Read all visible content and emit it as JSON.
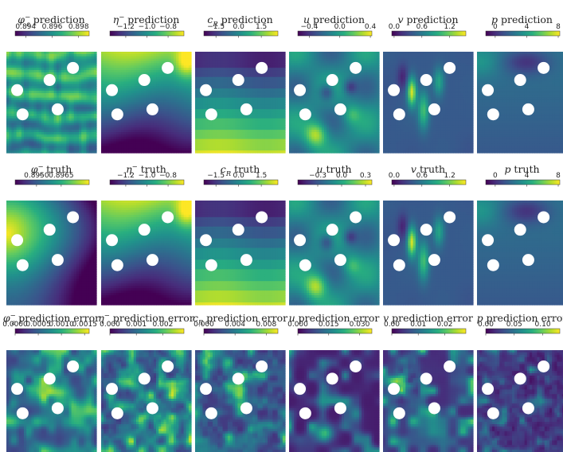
{
  "colors": {
    "colormap": "viridis",
    "viridis_stops": [
      "#440154",
      "#472d7b",
      "#3b528b",
      "#2c728e",
      "#21918c",
      "#28ae80",
      "#5ec962",
      "#addc30",
      "#fde725"
    ],
    "obstacle": "#ffffff"
  },
  "chart_data": [
    {
      "type": "heatmap",
      "row": "prediction",
      "variable": "phi_eps_minus",
      "title_sym": "φ",
      "title_sup": "−",
      "title_sub": "ε",
      "title_text": " prediction",
      "cbar_ticks": [
        "0.894",
        "0.896",
        "0.898"
      ],
      "cbar_range": [
        0.8932,
        0.8988
      ],
      "cbar_tick_values": [
        0.894,
        0.896,
        0.898
      ],
      "field": "phi_pred"
    },
    {
      "type": "heatmap",
      "row": "prediction",
      "variable": "eta_minus",
      "title_sym": "η",
      "title_sup": "−",
      "title_sub": "",
      "title_text": " prediction",
      "cbar_ticks": [
        "−1.2",
        "−1.0",
        "−0.8"
      ],
      "cbar_range": [
        -1.35,
        -0.65
      ],
      "cbar_tick_values": [
        -1.2,
        -1.0,
        -0.8
      ],
      "field": "eta"
    },
    {
      "type": "heatmap",
      "row": "prediction",
      "variable": "c_R",
      "title_sym": "c",
      "title_sup": "",
      "title_sub": "R",
      "title_text": " prediction",
      "cbar_ticks": [
        "−1.5",
        "0.0",
        "1.5"
      ],
      "cbar_range": [
        -2.3,
        2.6
      ],
      "cbar_tick_values": [
        -1.5,
        0.0,
        1.5
      ],
      "field": "cr"
    },
    {
      "type": "heatmap",
      "row": "prediction",
      "variable": "u",
      "title_sym": "u",
      "title_sup": "",
      "title_sub": "",
      "title_text": " prediction",
      "cbar_ticks": [
        "−0.4",
        "0.0",
        "0.4"
      ],
      "cbar_range": [
        -0.55,
        0.42
      ],
      "cbar_tick_values": [
        -0.4,
        0.0,
        0.4
      ],
      "field": "u"
    },
    {
      "type": "heatmap",
      "row": "prediction",
      "variable": "v",
      "title_sym": "v",
      "title_sup": "",
      "title_sub": "",
      "title_text": " prediction",
      "cbar_ticks": [
        "0.0",
        "0.6",
        "1.2"
      ],
      "cbar_range": [
        -0.05,
        1.55
      ],
      "cbar_tick_values": [
        0.0,
        0.6,
        1.2
      ],
      "field": "v"
    },
    {
      "type": "heatmap",
      "row": "prediction",
      "variable": "p",
      "title_sym": "p",
      "title_sup": "",
      "title_sub": "",
      "title_text": " prediction",
      "cbar_ticks": [
        "0",
        "4",
        "8"
      ],
      "cbar_range": [
        -1.2,
        8.2
      ],
      "cbar_tick_values": [
        0,
        4,
        8
      ],
      "field": "p"
    },
    {
      "type": "heatmap",
      "row": "truth",
      "variable": "phi_eps_minus",
      "title_sym": "φ",
      "title_sup": "−",
      "title_sub": "ε",
      "title_text": " truth",
      "cbar_ticks": [
        "0.8950",
        "0.8965"
      ],
      "cbar_range": [
        0.8937,
        0.8982
      ],
      "cbar_tick_values": [
        0.895,
        0.8965
      ],
      "field": "phi_true"
    },
    {
      "type": "heatmap",
      "row": "truth",
      "variable": "eta_minus",
      "title_sym": "η",
      "title_sup": "−",
      "title_sub": "",
      "title_text": " truth",
      "cbar_ticks": [
        "−1.2",
        "−1.0",
        "−0.8"
      ],
      "cbar_range": [
        -1.35,
        -0.65
      ],
      "cbar_tick_values": [
        -1.2,
        -1.0,
        -0.8
      ],
      "field": "eta"
    },
    {
      "type": "heatmap",
      "row": "truth",
      "variable": "c_R",
      "title_sym": "c",
      "title_sup": "",
      "title_sub": "R",
      "title_text": " truth",
      "cbar_ticks": [
        "−1.5",
        "0.0",
        "1.5"
      ],
      "cbar_range": [
        -2.3,
        2.6
      ],
      "cbar_tick_values": [
        -1.5,
        0.0,
        1.5
      ],
      "field": "cr"
    },
    {
      "type": "heatmap",
      "row": "truth",
      "variable": "u",
      "title_sym": "u",
      "title_sup": "",
      "title_sub": "",
      "title_text": " truth",
      "cbar_ticks": [
        "−0.3",
        "0.0",
        "0.3"
      ],
      "cbar_range": [
        -0.55,
        0.38
      ],
      "cbar_tick_values": [
        -0.3,
        0.0,
        0.3
      ],
      "field": "u"
    },
    {
      "type": "heatmap",
      "row": "truth",
      "variable": "v",
      "title_sym": "v",
      "title_sup": "",
      "title_sub": "",
      "title_text": " truth",
      "cbar_ticks": [
        "0.0",
        "0.6",
        "1.2"
      ],
      "cbar_range": [
        -0.05,
        1.55
      ],
      "cbar_tick_values": [
        0.0,
        0.6,
        1.2
      ],
      "field": "v"
    },
    {
      "type": "heatmap",
      "row": "truth",
      "variable": "p",
      "title_sym": "p",
      "title_sup": "",
      "title_sub": "",
      "title_text": " truth",
      "cbar_ticks": [
        "0",
        "4",
        "8"
      ],
      "cbar_range": [
        -1.2,
        8.2
      ],
      "cbar_tick_values": [
        0,
        4,
        8
      ],
      "field": "p"
    },
    {
      "type": "heatmap",
      "row": "prediction error",
      "variable": "phi_eps_minus",
      "title_sym": "φ",
      "title_sup": "−",
      "title_sub": "ε",
      "title_text": " prediction error",
      "cbar_ticks": [
        "0.0000",
        "0.0005",
        "0.0010",
        "0.0015"
      ],
      "cbar_range": [
        0,
        0.0016
      ],
      "cbar_tick_values": [
        0,
        0.0005,
        0.001,
        0.0015
      ],
      "field": "err_phi"
    },
    {
      "type": "heatmap",
      "row": "prediction error",
      "variable": "eta_minus",
      "title_sym": "η",
      "title_sup": "−",
      "title_sub": "",
      "title_text": " prediction error",
      "cbar_ticks": [
        "0.000",
        "0.001",
        "0.002"
      ],
      "cbar_range": [
        0,
        0.0028
      ],
      "cbar_tick_values": [
        0,
        0.001,
        0.002
      ],
      "field": "err_eta"
    },
    {
      "type": "heatmap",
      "row": "prediction error",
      "variable": "c_R",
      "title_sym": "c",
      "title_sup": "",
      "title_sub": "R",
      "title_text": " prediction error",
      "cbar_ticks": [
        "0.000",
        "0.004",
        "0.008"
      ],
      "cbar_range": [
        0,
        0.0095
      ],
      "cbar_tick_values": [
        0,
        0.004,
        0.008
      ],
      "field": "err_cr"
    },
    {
      "type": "heatmap",
      "row": "prediction error",
      "variable": "u",
      "title_sym": "u",
      "title_sup": "",
      "title_sub": "",
      "title_text": " prediction error",
      "cbar_ticks": [
        "0.000",
        "0.015",
        "0.030"
      ],
      "cbar_range": [
        0,
        0.036
      ],
      "cbar_tick_values": [
        0,
        0.015,
        0.03
      ],
      "field": "err_u"
    },
    {
      "type": "heatmap",
      "row": "prediction error",
      "variable": "v",
      "title_sym": "v",
      "title_sup": "",
      "title_sub": "",
      "title_text": " prediction error",
      "cbar_ticks": [
        "0.00",
        "0.01",
        "0.02"
      ],
      "cbar_range": [
        0,
        0.028
      ],
      "cbar_tick_values": [
        0,
        0.01,
        0.02
      ],
      "field": "err_v"
    },
    {
      "type": "heatmap",
      "row": "prediction error",
      "variable": "p",
      "title_sym": "p",
      "title_sup": "",
      "title_sub": "",
      "title_text": " prediction error",
      "cbar_ticks": [
        "0.00",
        "0.05",
        "0.10"
      ],
      "cbar_range": [
        0,
        0.13
      ],
      "cbar_tick_values": [
        0,
        0.05,
        0.1
      ],
      "field": "err_p"
    }
  ]
}
